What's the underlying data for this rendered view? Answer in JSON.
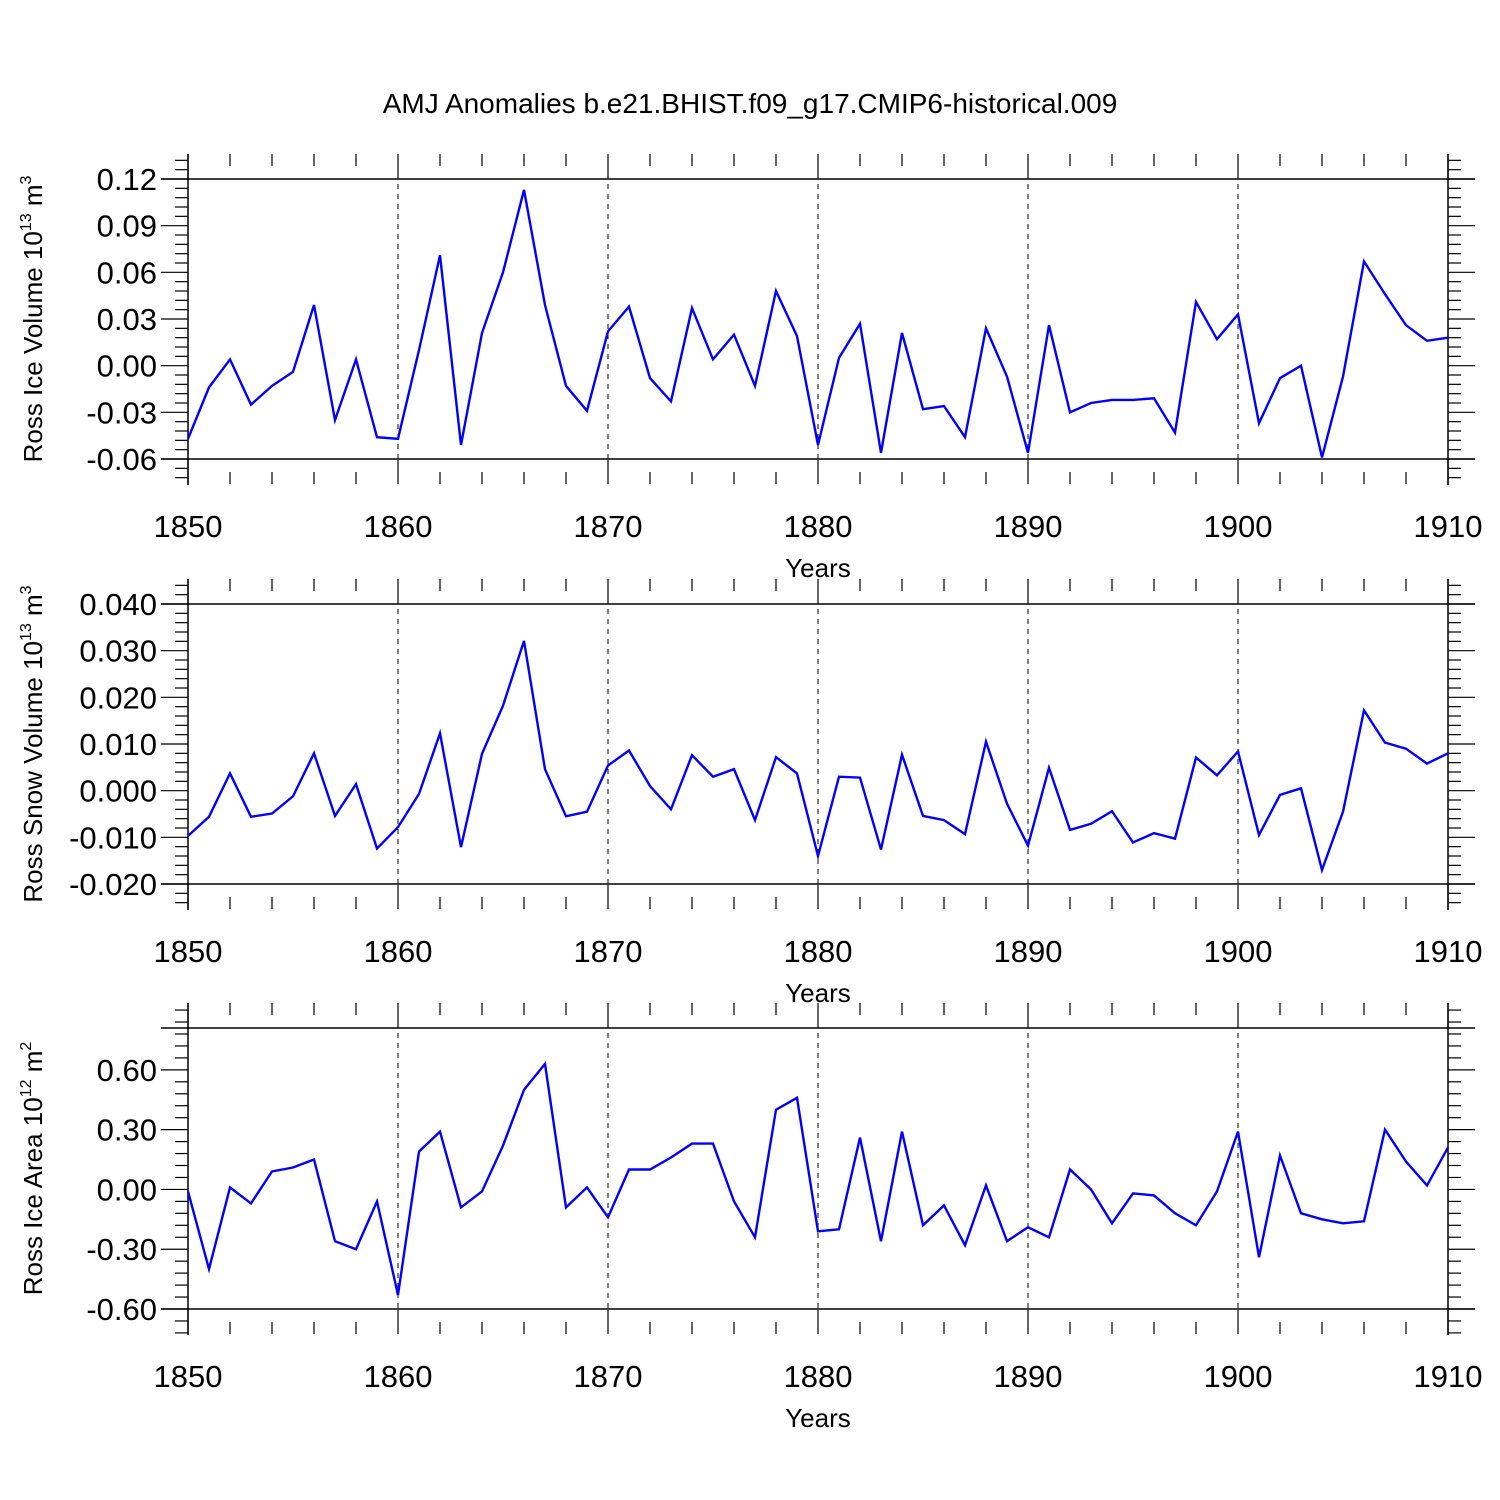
{
  "title": "AMJ Anomalies b.e21.BHIST.f09_g17.CMIP6-historical.009",
  "line_color": "#0000ff",
  "chart_data": [
    {
      "type": "line",
      "xlabel": "Years",
      "ylabel": {
        "text": "Ross Ice Volume 10",
        "exp": "13",
        "unit": " m",
        "unit_exp": "3"
      },
      "xlim": [
        1850,
        1910
      ],
      "ylim": [
        -0.06,
        0.12
      ],
      "xticks": [
        1850,
        1860,
        1870,
        1880,
        1890,
        1900,
        1910
      ],
      "yticks": [
        "0.12",
        "0.09",
        "0.06",
        "0.03",
        "0.00",
        "-0.03",
        "-0.06"
      ],
      "grid": "vertical dashed at major x ticks",
      "x": [
        1850,
        1851,
        1852,
        1853,
        1854,
        1855,
        1856,
        1857,
        1858,
        1859,
        1860,
        1861,
        1862,
        1863,
        1864,
        1865,
        1866,
        1867,
        1868,
        1869,
        1870,
        1871,
        1872,
        1873,
        1874,
        1875,
        1876,
        1877,
        1878,
        1879,
        1880,
        1881,
        1882,
        1883,
        1884,
        1885,
        1886,
        1887,
        1888,
        1889,
        1890,
        1891,
        1892,
        1893,
        1894,
        1895,
        1896,
        1897,
        1898,
        1899,
        1900,
        1901,
        1902,
        1903,
        1904,
        1905,
        1906,
        1907,
        1908,
        1909,
        1910
      ],
      "values": [
        -0.047,
        -0.014,
        0.004,
        -0.025,
        -0.013,
        -0.004,
        0.039,
        -0.035,
        0.004,
        -0.046,
        -0.047,
        0.01,
        0.071,
        -0.051,
        0.021,
        0.06,
        0.113,
        0.039,
        -0.013,
        -0.029,
        0.022,
        0.038,
        -0.008,
        -0.023,
        0.037,
        0.004,
        0.02,
        -0.013,
        0.048,
        0.019,
        -0.051,
        0.005,
        0.027,
        -0.056,
        0.021,
        -0.028,
        -0.026,
        -0.046,
        0.024,
        -0.007,
        -0.056,
        0.026,
        -0.03,
        -0.024,
        -0.022,
        -0.022,
        -0.021,
        -0.043,
        0.041,
        0.017,
        0.033,
        -0.037,
        -0.008,
        0.0,
        -0.059,
        -0.007,
        0.067,
        0.046,
        0.026,
        0.016,
        0.018
      ]
    },
    {
      "type": "line",
      "xlabel": "Years",
      "ylabel": {
        "text": "Ross Snow Volume 10",
        "exp": "13",
        "unit": " m",
        "unit_exp": "3"
      },
      "xlim": [
        1850,
        1910
      ],
      "ylim": [
        -0.02,
        0.04
      ],
      "xticks": [
        1850,
        1860,
        1870,
        1880,
        1890,
        1900,
        1910
      ],
      "yticks": [
        "0.040",
        "0.030",
        "0.020",
        "0.010",
        "0.000",
        "-0.010",
        "-0.020"
      ],
      "grid": "vertical dashed at major x ticks",
      "x": [
        1850,
        1851,
        1852,
        1853,
        1854,
        1855,
        1856,
        1857,
        1858,
        1859,
        1860,
        1861,
        1862,
        1863,
        1864,
        1865,
        1866,
        1867,
        1868,
        1869,
        1870,
        1871,
        1872,
        1873,
        1874,
        1875,
        1876,
        1877,
        1878,
        1879,
        1880,
        1881,
        1882,
        1883,
        1884,
        1885,
        1886,
        1887,
        1888,
        1889,
        1890,
        1891,
        1892,
        1893,
        1894,
        1895,
        1896,
        1897,
        1898,
        1899,
        1900,
        1901,
        1902,
        1903,
        1904,
        1905,
        1906,
        1907,
        1908,
        1909,
        1910
      ],
      "values": [
        -0.0097,
        -0.0056,
        0.0037,
        -0.0056,
        -0.0049,
        -0.0012,
        0.008,
        -0.0054,
        0.0014,
        -0.0124,
        -0.0078,
        -0.0007,
        0.0123,
        -0.0121,
        0.0079,
        0.0182,
        0.0321,
        0.0046,
        -0.0055,
        -0.0045,
        0.0054,
        0.0086,
        0.001,
        -0.004,
        0.0076,
        0.003,
        0.0046,
        -0.0063,
        0.0072,
        0.0037,
        -0.014,
        0.003,
        0.0028,
        -0.0126,
        0.0077,
        -0.0054,
        -0.0063,
        -0.0093,
        0.0105,
        -0.0028,
        -0.0118,
        0.0049,
        -0.0084,
        -0.0071,
        -0.0044,
        -0.0111,
        -0.0091,
        -0.0103,
        0.0071,
        0.0033,
        0.0084,
        -0.0095,
        -0.0009,
        0.0005,
        -0.017,
        -0.0045,
        0.0172,
        0.0103,
        0.009,
        0.0058,
        0.008
      ]
    },
    {
      "type": "line",
      "xlabel": "Years",
      "ylabel": {
        "text": "Ross Ice Area 10",
        "exp": "12",
        "unit": " m",
        "unit_exp": "2"
      },
      "xlim": [
        1850,
        1910
      ],
      "ylim": [
        -0.6,
        0.81
      ],
      "xticks": [
        1850,
        1860,
        1870,
        1880,
        1890,
        1900,
        1910
      ],
      "yticks": [
        "0.60",
        "0.30",
        "0.00",
        "-0.30",
        "-0.60"
      ],
      "grid": "vertical dashed at major x ticks",
      "x": [
        1850,
        1851,
        1852,
        1853,
        1854,
        1855,
        1856,
        1857,
        1858,
        1859,
        1860,
        1861,
        1862,
        1863,
        1864,
        1865,
        1866,
        1867,
        1868,
        1869,
        1870,
        1871,
        1872,
        1873,
        1874,
        1875,
        1876,
        1877,
        1878,
        1879,
        1880,
        1881,
        1882,
        1883,
        1884,
        1885,
        1886,
        1887,
        1888,
        1889,
        1890,
        1891,
        1892,
        1893,
        1894,
        1895,
        1896,
        1897,
        1898,
        1899,
        1900,
        1901,
        1902,
        1903,
        1904,
        1905,
        1906,
        1907,
        1908,
        1909,
        1910
      ],
      "values": [
        -0.01,
        -0.4,
        0.01,
        -0.07,
        0.09,
        0.11,
        0.15,
        -0.26,
        -0.3,
        -0.06,
        -0.53,
        0.19,
        0.29,
        -0.09,
        -0.01,
        0.22,
        0.5,
        0.63,
        -0.09,
        0.01,
        -0.14,
        0.1,
        0.1,
        0.16,
        0.23,
        0.23,
        -0.06,
        -0.24,
        0.4,
        0.46,
        -0.21,
        -0.2,
        0.26,
        -0.26,
        0.29,
        -0.18,
        -0.08,
        -0.28,
        0.02,
        -0.26,
        -0.19,
        -0.24,
        0.1,
        0.0,
        -0.17,
        -0.02,
        -0.03,
        -0.12,
        -0.18,
        -0.01,
        0.29,
        -0.34,
        0.17,
        -0.12,
        -0.15,
        -0.17,
        -0.16,
        0.3,
        0.14,
        0.02,
        0.21
      ]
    }
  ]
}
